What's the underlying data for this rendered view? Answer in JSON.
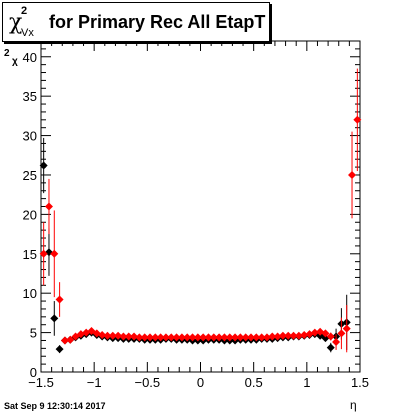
{
  "chart_data": {
    "type": "scatter",
    "title": "for Primary Rec All EtapT",
    "ylabel_main": "χ",
    "ylabel_sup": "2",
    "ylabel_sub": "Vx",
    "xlabel": "η",
    "xlim": [
      -1.5,
      1.5
    ],
    "ylim": [
      0,
      42
    ],
    "xticks": [
      -1.5,
      -1,
      -0.5,
      0,
      0.5,
      1,
      1.5
    ],
    "xtick_labels": [
      "−1.5",
      "−1",
      "−0.5",
      "0",
      "0.5",
      "1",
      "1.5"
    ],
    "yticks": [
      0,
      5,
      10,
      15,
      20,
      25,
      30,
      35,
      40
    ],
    "series": [
      {
        "color": "#000000",
        "x": [
          -1.475,
          -1.425,
          -1.375,
          -1.325,
          -1.275,
          -1.225,
          -1.175,
          -1.125,
          -1.075,
          -1.025,
          -0.975,
          -0.925,
          -0.875,
          -0.825,
          -0.775,
          -0.725,
          -0.675,
          -0.625,
          -0.575,
          -0.525,
          -0.475,
          -0.425,
          -0.375,
          -0.325,
          -0.275,
          -0.225,
          -0.175,
          -0.125,
          -0.075,
          -0.025,
          0.025,
          0.075,
          0.125,
          0.175,
          0.225,
          0.275,
          0.325,
          0.375,
          0.425,
          0.475,
          0.525,
          0.575,
          0.625,
          0.675,
          0.725,
          0.775,
          0.825,
          0.875,
          0.925,
          0.975,
          1.025,
          1.075,
          1.125,
          1.175,
          1.225,
          1.275,
          1.325,
          1.375,
          1.425,
          1.475
        ],
        "y": [
          26.2,
          15.2,
          6.8,
          2.9,
          4.0,
          4.1,
          4.4,
          4.6,
          4.8,
          5.0,
          4.7,
          4.5,
          4.4,
          4.3,
          4.3,
          4.2,
          4.2,
          4.2,
          4.2,
          4.1,
          4.1,
          4.1,
          4.1,
          4.2,
          4.2,
          4.1,
          4.1,
          4.1,
          4.0,
          4.0,
          4.0,
          4.1,
          4.1,
          4.1,
          4.0,
          4.0,
          4.0,
          4.1,
          4.1,
          4.1,
          4.1,
          4.2,
          4.2,
          4.2,
          4.3,
          4.4,
          4.4,
          4.5,
          4.5,
          4.6,
          4.7,
          4.8,
          4.6,
          4.3,
          3.1,
          4.5,
          6.1,
          6.3,
          null,
          null
        ],
        "err": [
          3.5,
          3.0,
          2.2,
          0.5,
          0.3,
          0.3,
          0.3,
          0.3,
          0.3,
          0.3,
          0.3,
          0.2,
          0.2,
          0.2,
          0.2,
          0.2,
          0.2,
          0.2,
          0.2,
          0.2,
          0.2,
          0.2,
          0.2,
          0.2,
          0.2,
          0.2,
          0.2,
          0.2,
          0.2,
          0.2,
          0.2,
          0.2,
          0.2,
          0.2,
          0.2,
          0.2,
          0.2,
          0.2,
          0.2,
          0.2,
          0.2,
          0.2,
          0.2,
          0.2,
          0.2,
          0.2,
          0.2,
          0.2,
          0.3,
          0.3,
          0.3,
          0.3,
          0.3,
          0.3,
          0.6,
          1.0,
          2.0,
          3.5,
          0,
          0
        ]
      },
      {
        "color": "#ff0000",
        "x": [
          -1.475,
          -1.425,
          -1.375,
          -1.325,
          -1.275,
          -1.225,
          -1.175,
          -1.125,
          -1.075,
          -1.025,
          -0.975,
          -0.925,
          -0.875,
          -0.825,
          -0.775,
          -0.725,
          -0.675,
          -0.625,
          -0.575,
          -0.525,
          -0.475,
          -0.425,
          -0.375,
          -0.325,
          -0.275,
          -0.225,
          -0.175,
          -0.125,
          -0.075,
          -0.025,
          0.025,
          0.075,
          0.125,
          0.175,
          0.225,
          0.275,
          0.325,
          0.375,
          0.425,
          0.475,
          0.525,
          0.575,
          0.625,
          0.675,
          0.725,
          0.775,
          0.825,
          0.875,
          0.925,
          0.975,
          1.025,
          1.075,
          1.125,
          1.175,
          1.225,
          1.275,
          1.325,
          1.375,
          1.425,
          1.475
        ],
        "y": [
          15.0,
          21.0,
          15.0,
          9.2,
          4.0,
          4.1,
          4.5,
          4.8,
          5.0,
          5.2,
          4.9,
          4.7,
          4.6,
          4.6,
          4.6,
          4.5,
          4.5,
          4.5,
          4.4,
          4.4,
          4.4,
          4.4,
          4.4,
          4.4,
          4.4,
          4.4,
          4.4,
          4.4,
          4.4,
          4.4,
          4.4,
          4.4,
          4.4,
          4.4,
          4.4,
          4.4,
          4.4,
          4.4,
          4.4,
          4.4,
          4.4,
          4.4,
          4.4,
          4.5,
          4.5,
          4.6,
          4.6,
          4.6,
          4.6,
          4.7,
          4.8,
          5.0,
          5.1,
          4.9,
          4.5,
          3.8,
          4.9,
          5.5,
          25.0,
          32.0
        ],
        "err": [
          4.0,
          3.5,
          5.5,
          2.2,
          0.3,
          0.3,
          0.3,
          0.3,
          0.3,
          0.3,
          0.3,
          0.2,
          0.2,
          0.2,
          0.2,
          0.2,
          0.2,
          0.2,
          0.2,
          0.2,
          0.2,
          0.2,
          0.2,
          0.2,
          0.2,
          0.2,
          0.2,
          0.2,
          0.2,
          0.2,
          0.2,
          0.2,
          0.2,
          0.2,
          0.2,
          0.2,
          0.2,
          0.2,
          0.2,
          0.2,
          0.2,
          0.2,
          0.2,
          0.2,
          0.2,
          0.2,
          0.2,
          0.2,
          0.3,
          0.3,
          0.3,
          0.3,
          0.3,
          0.3,
          0.5,
          1.0,
          2.0,
          3.0,
          5.5,
          6.5
        ]
      }
    ]
  },
  "footer": {
    "timestamp": "Sat Sep  9 12:30:14 2017"
  }
}
